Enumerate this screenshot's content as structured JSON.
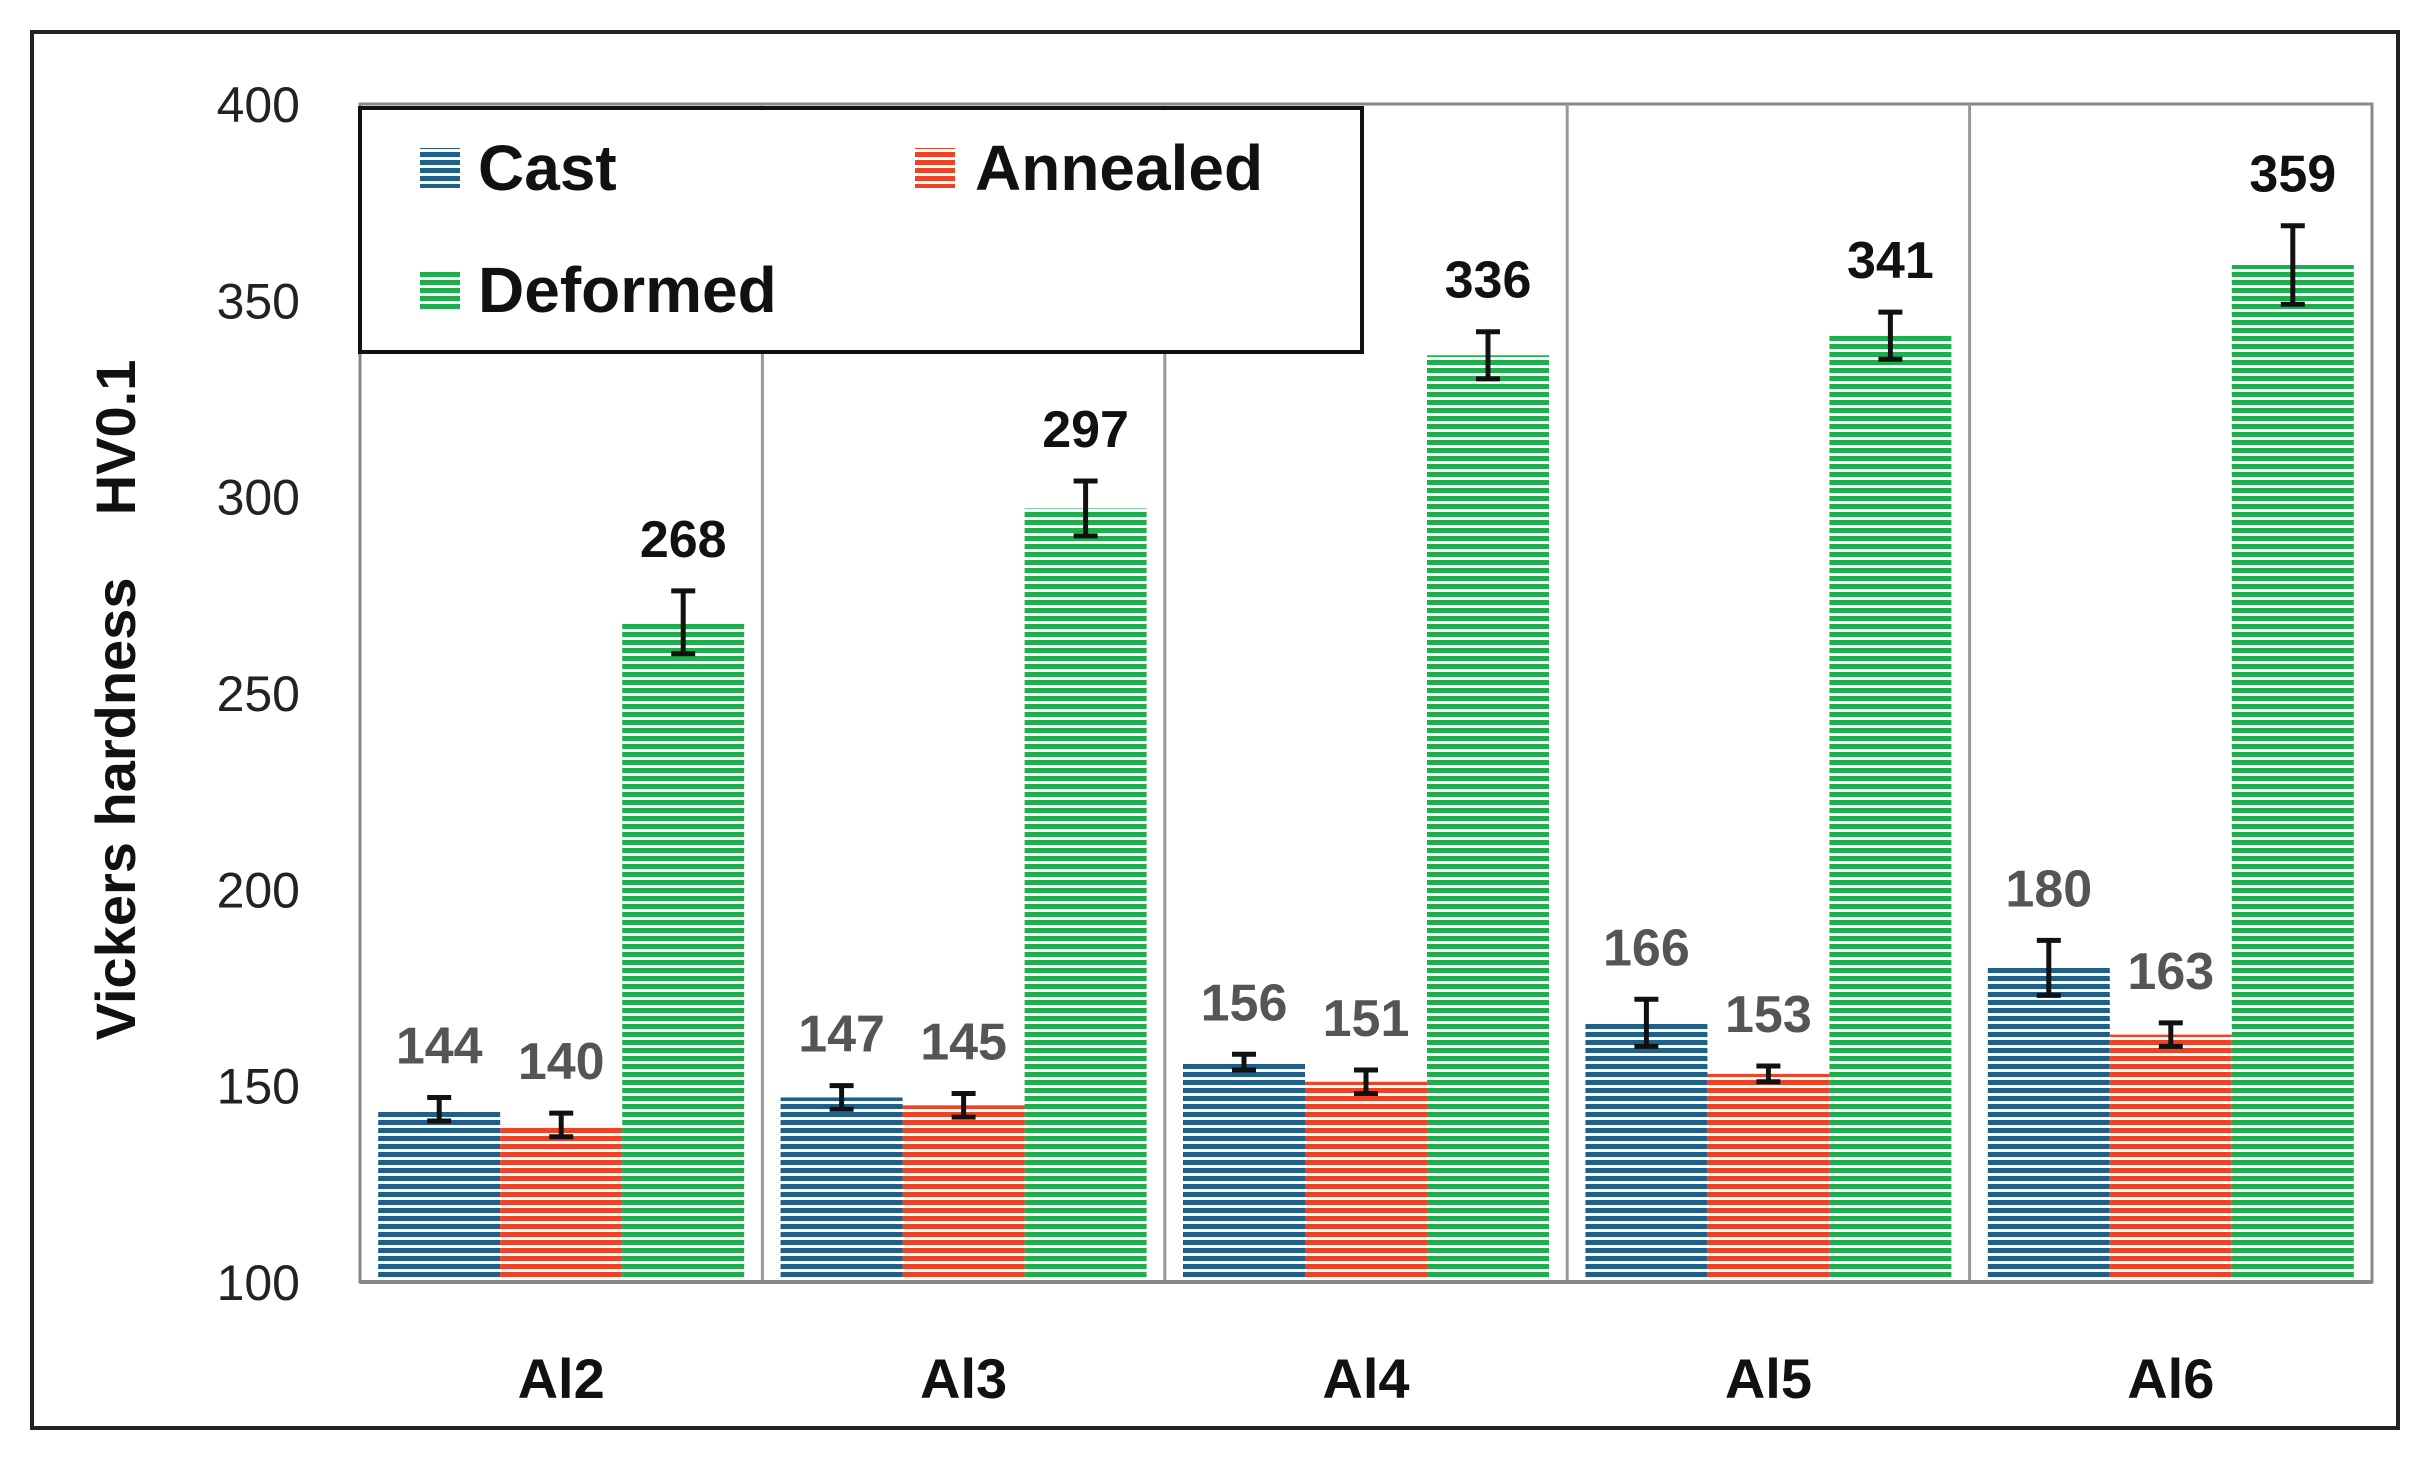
{
  "chart_data": {
    "type": "bar",
    "title": "",
    "xlabel": "",
    "ylabel": "Vickers hardness    HV0.1",
    "ylim": [
      100,
      400
    ],
    "yticks": [
      100,
      150,
      200,
      250,
      300,
      350,
      400
    ],
    "grid": "vertical separators between categories",
    "legend_position": "top-left",
    "categories": [
      "Al2",
      "Al3",
      "Al4",
      "Al5",
      "Al6"
    ],
    "series": [
      {
        "name": "Cast",
        "color": "#1f5f8b",
        "values": [
          144,
          147,
          156,
          166,
          180
        ],
        "labels": [
          "144",
          "147",
          "156",
          "166",
          "180"
        ],
        "errors": [
          3,
          3,
          2,
          6,
          7
        ]
      },
      {
        "name": "Annealed",
        "color": "#ef4123",
        "values": [
          140,
          145,
          151,
          153,
          163
        ],
        "labels": [
          "140",
          "145",
          "151",
          "153",
          "163"
        ],
        "errors": [
          3,
          3,
          3,
          2,
          3
        ]
      },
      {
        "name": "Deformed",
        "color": "#1fae4c",
        "values": [
          268,
          297,
          336,
          341,
          359
        ],
        "labels": [
          "268",
          "297",
          "336",
          "341",
          "359"
        ],
        "errors": [
          8,
          7,
          6,
          6,
          10
        ]
      }
    ]
  }
}
